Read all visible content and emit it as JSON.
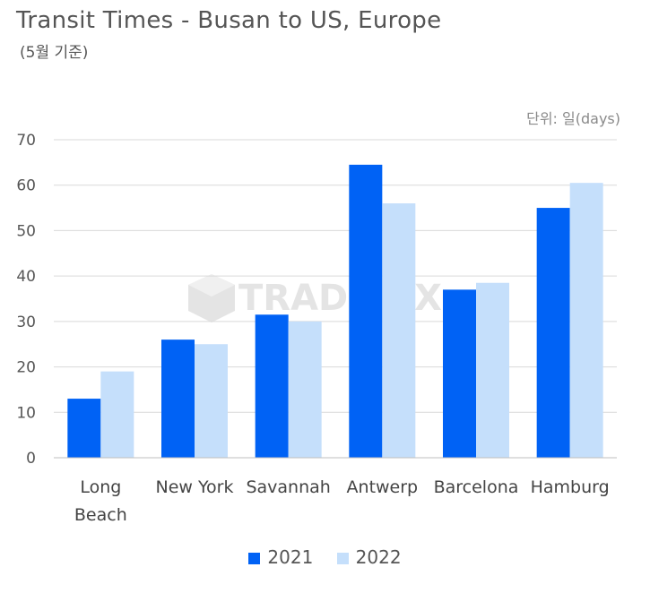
{
  "title": "Transit Times - Busan to US, Europe",
  "subtitle": "(5월 기준)",
  "unit_label": "단위: 일(days)",
  "watermark": "TRADLINX",
  "colors": {
    "2021": "#0062f5",
    "2022": "#c5dffb",
    "grid": "#d9d9d9",
    "axis": "#bfbfbf"
  },
  "chart_data": {
    "type": "bar",
    "title": "Transit Times - Busan to US, Europe",
    "subtitle": "(5월 기준)",
    "ylabel": "단위: 일(days)",
    "categories": [
      [
        "Long",
        "Beach"
      ],
      [
        "New York"
      ],
      [
        "Savannah"
      ],
      [
        "Antwerp"
      ],
      [
        "Barcelona"
      ],
      [
        "Hamburg"
      ]
    ],
    "series": [
      {
        "name": "2021",
        "values": [
          13,
          26,
          31.5,
          64.5,
          37,
          55
        ]
      },
      {
        "name": "2022",
        "values": [
          19,
          25,
          30,
          56,
          38.5,
          60.5
        ]
      }
    ],
    "ylim": [
      0,
      70
    ],
    "yticks": [
      0,
      10,
      20,
      30,
      40,
      50,
      60,
      70
    ],
    "grid": true,
    "legend": "bottom"
  }
}
